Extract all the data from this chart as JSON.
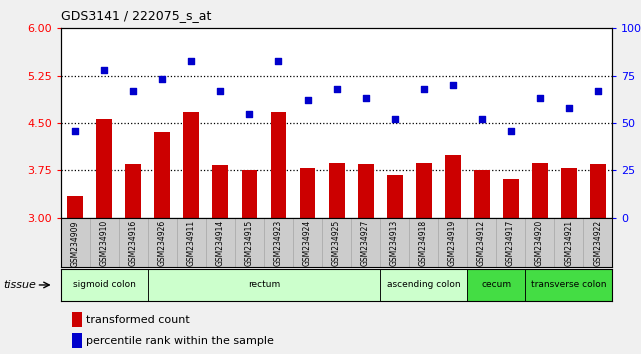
{
  "title": "GDS3141 / 222075_s_at",
  "samples": [
    "GSM234909",
    "GSM234910",
    "GSM234916",
    "GSM234926",
    "GSM234911",
    "GSM234914",
    "GSM234915",
    "GSM234923",
    "GSM234924",
    "GSM234925",
    "GSM234927",
    "GSM234913",
    "GSM234918",
    "GSM234919",
    "GSM234912",
    "GSM234917",
    "GSM234920",
    "GSM234921",
    "GSM234922"
  ],
  "bar_values": [
    3.35,
    4.57,
    3.85,
    4.35,
    4.67,
    3.84,
    3.75,
    4.67,
    3.78,
    3.87,
    3.85,
    3.68,
    3.87,
    4.0,
    3.75,
    3.62,
    3.87,
    3.78,
    3.85
  ],
  "dot_values": [
    46,
    78,
    67,
    73,
    83,
    67,
    55,
    83,
    62,
    68,
    63,
    52,
    68,
    70,
    52,
    46,
    63,
    58,
    67
  ],
  "bar_color": "#cc0000",
  "dot_color": "#0000cc",
  "ylim_left": [
    3.0,
    6.0
  ],
  "ylim_right": [
    0,
    100
  ],
  "yticks_left": [
    3.0,
    3.75,
    4.5,
    5.25,
    6.0
  ],
  "yticks_right": [
    0,
    25,
    50,
    75,
    100
  ],
  "dotted_lines": [
    3.75,
    4.5,
    5.25
  ],
  "tissue_groups": [
    {
      "label": "sigmoid colon",
      "start": 0,
      "end": 3,
      "color": "#ccffcc"
    },
    {
      "label": "rectum",
      "start": 3,
      "end": 11,
      "color": "#ccffcc"
    },
    {
      "label": "ascending colon",
      "start": 11,
      "end": 14,
      "color": "#ccffcc"
    },
    {
      "label": "cecum",
      "start": 14,
      "end": 16,
      "color": "#44dd44"
    },
    {
      "label": "transverse colon",
      "start": 16,
      "end": 19,
      "color": "#44dd44"
    }
  ],
  "legend_bar_label": "transformed count",
  "legend_dot_label": "percentile rank within the sample",
  "tissue_label": "tissue",
  "fig_bg": "#f0f0f0",
  "plot_bg": "#ffffff",
  "sample_label_bg": "#cccccc"
}
